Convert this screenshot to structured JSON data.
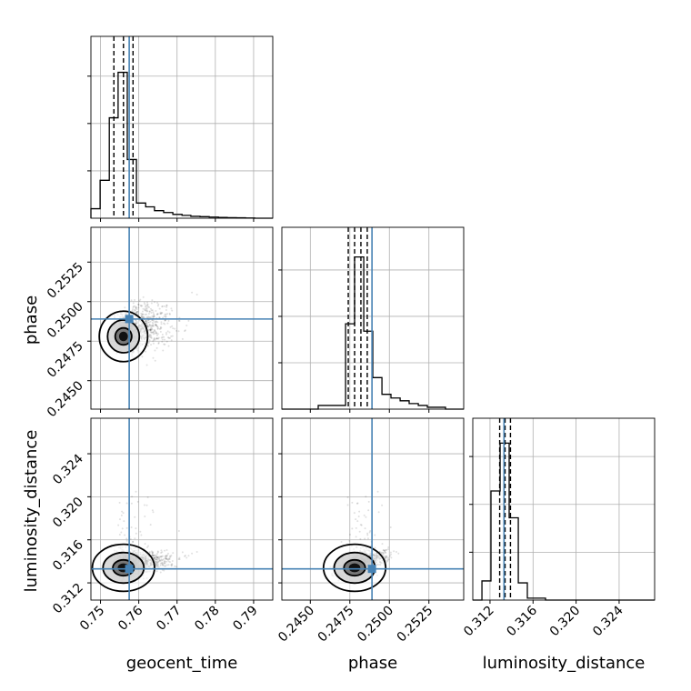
{
  "colors": {
    "truth": "#4682b4",
    "hist": "#000000",
    "grid": "#b0b0b0"
  },
  "chart_data": {
    "type": "corner",
    "parameters": [
      "geocent_time",
      "phase",
      "luminosity_distance"
    ],
    "truth": {
      "geocent_time": 0.7575,
      "phase": 0.2489,
      "luminosity_distance": 0.3133
    },
    "ranges": {
      "geocent_time": [
        0.7475,
        0.795
      ],
      "phase": [
        0.2432,
        0.2547
      ],
      "luminosity_distance": [
        0.3104,
        0.3273
      ]
    },
    "ticks": {
      "geocent_time": [
        "0.75",
        "0.76",
        "0.77",
        "0.78",
        "0.79"
      ],
      "phase": [
        "0.2450",
        "0.2475",
        "0.2500",
        "0.2525"
      ],
      "luminosity_distance": [
        "0.312",
        "0.316",
        "0.320",
        "0.324"
      ]
    },
    "histograms": {
      "geocent_time": {
        "bins": [
          0.7475,
          0.7499,
          0.7523,
          0.7546,
          0.757,
          0.7594,
          0.7618,
          0.7641,
          0.7665,
          0.7689,
          0.7713,
          0.7736,
          0.776,
          0.7784,
          0.7808,
          0.7831,
          0.7855,
          0.7879,
          0.7903,
          0.7926,
          0.795
        ],
        "counts": [
          0.05,
          0.2,
          0.53,
          0.77,
          0.31,
          0.08,
          0.06,
          0.04,
          0.03,
          0.02,
          0.015,
          0.01,
          0.008,
          0.006,
          0.004,
          0.003,
          0.002,
          0.001,
          0.0,
          0.0
        ],
        "quantiles": [
          0.7535,
          0.756,
          0.7585
        ],
        "ymax": 0.96
      },
      "phase": {
        "bins": [
          0.2432,
          0.24378,
          0.24435,
          0.24493,
          0.2455,
          0.24608,
          0.24665,
          0.24723,
          0.2478,
          0.24838,
          0.24895,
          0.24953,
          0.2501,
          0.25068,
          0.25125,
          0.25183,
          0.2524,
          0.25298,
          0.25355,
          0.25413,
          0.2547
        ],
        "counts": [
          0,
          0,
          0,
          0,
          0.02,
          0.02,
          0.02,
          0.46,
          0.82,
          0.42,
          0.17,
          0.08,
          0.06,
          0.045,
          0.03,
          0.02,
          0.01,
          0.01,
          0,
          0
        ],
        "quantiles": [
          0.2474,
          0.2478,
          0.2482,
          0.2486
        ],
        "ymax": 0.98
      },
      "luminosity_distance": {
        "bins": [
          0.3104,
          0.31125,
          0.31209,
          0.31294,
          0.31378,
          0.31463,
          0.31547,
          0.31632,
          0.31716,
          0.31801,
          0.31885,
          0.3197,
          0.32054,
          0.32139,
          0.32223,
          0.32308,
          0.32392,
          0.32477,
          0.32561,
          0.32646,
          0.3273
        ],
        "counts": [
          0,
          0.1,
          0.57,
          0.82,
          0.43,
          0.09,
          0.01,
          0.01,
          0,
          0,
          0,
          0,
          0,
          0,
          0,
          0,
          0,
          0,
          0,
          0
        ],
        "quantiles": [
          0.3129,
          0.3134,
          0.3139
        ],
        "ymax": 0.95
      }
    },
    "grid": true
  }
}
